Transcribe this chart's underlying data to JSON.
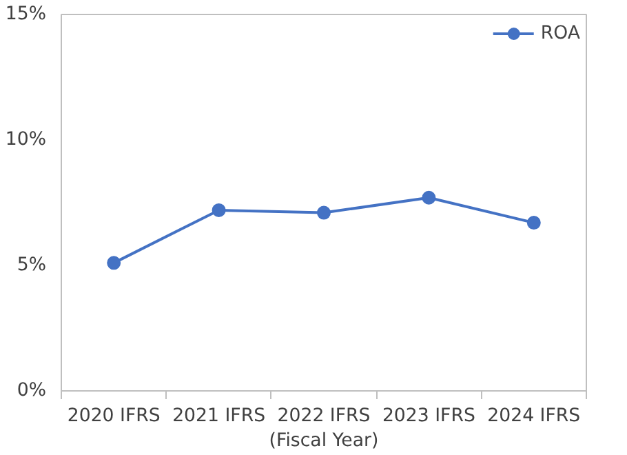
{
  "chart_data": {
    "type": "line",
    "categories": [
      "2020\nIFRS",
      "2021\nIFRS",
      "2022\nIFRS",
      "2023\nIFRS",
      "2024\nIFRS"
    ],
    "xlabel": "(Fiscal Year)",
    "series": [
      {
        "name": "ROA",
        "color": "#4472c4",
        "values": [
          5.1,
          7.2,
          7.1,
          7.7,
          6.7
        ]
      }
    ],
    "ylim": [
      0,
      15
    ],
    "yticks": [
      {
        "value": 0,
        "label": "0%"
      },
      {
        "value": 5,
        "label": "5%"
      },
      {
        "value": 10,
        "label": "10%"
      },
      {
        "value": 15,
        "label": "15%"
      }
    ],
    "grid": false,
    "legend": "top right",
    "marker": "circle",
    "line_style": "solid"
  }
}
